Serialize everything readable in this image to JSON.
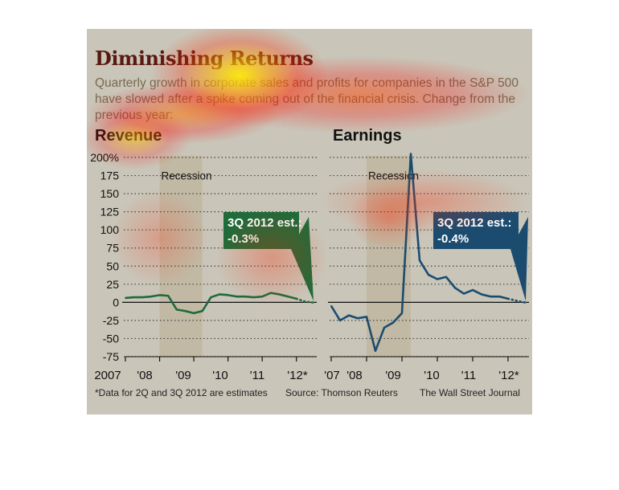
{
  "title": "Diminishing Returns",
  "subtitle": "Quarterly growth in corporate sales and profits for companies in the S&P 500 have slowed after a spike coming out of the financial crisis. Change from the previous year:",
  "footnotes": {
    "left": "*Data for 2Q and 3Q 2012 are estimates",
    "middle": "Source: Thomson Reuters",
    "right": "The Wall Street Journal"
  },
  "colors": {
    "revenue": "#1f6b3a",
    "earnings": "#1b4c70",
    "recession": "#b9ae93",
    "background": "#c9c5b8"
  },
  "chart_data": [
    {
      "type": "line",
      "title": "Revenue",
      "recession_label": "Recession",
      "ylim": [
        -75,
        200
      ],
      "yticks": [
        "200%",
        "175",
        "150",
        "125",
        "100",
        "75",
        "50",
        "25",
        "0",
        "-25",
        "-50",
        "-75"
      ],
      "xticks": [
        "2007",
        "'08",
        "'09",
        "'10",
        "'11",
        "'12*"
      ],
      "recession": [
        "2008-Q1",
        "2009-Q2"
      ],
      "annotation": {
        "line1": "3Q 2012 est.:",
        "line2": "-0.3%"
      },
      "series": [
        {
          "x": [
            "2007-Q1",
            "2007-Q2",
            "2007-Q3",
            "2007-Q4",
            "2008-Q1",
            "2008-Q2",
            "2008-Q3",
            "2008-Q4",
            "2009-Q1",
            "2009-Q2",
            "2009-Q3",
            "2009-Q4",
            "2010-Q1",
            "2010-Q2",
            "2010-Q3",
            "2010-Q4",
            "2011-Q1",
            "2011-Q2",
            "2011-Q3",
            "2011-Q4",
            "2012-Q1",
            "2012-Q2",
            "2012-Q3"
          ],
          "values": [
            6,
            7,
            7,
            8,
            10,
            9,
            -10,
            -12,
            -15,
            -12,
            7,
            11,
            10,
            8,
            8,
            7,
            8,
            13,
            11,
            8,
            5,
            1,
            -0.3
          ],
          "estimated_from": "2012-Q1"
        }
      ]
    },
    {
      "type": "line",
      "title": "Earnings",
      "recession_label": "Recession",
      "ylim": [
        -75,
        200
      ],
      "xticks": [
        "'07",
        "'08",
        "'09",
        "'10",
        "'11",
        "'12*"
      ],
      "recession": [
        "2008-Q1",
        "2009-Q2"
      ],
      "annotation": {
        "line1": "3Q 2012 est.:",
        "line2": "-0.4%"
      },
      "series": [
        {
          "x": [
            "2007-Q1",
            "2007-Q2",
            "2007-Q3",
            "2007-Q4",
            "2008-Q1",
            "2008-Q2",
            "2008-Q3",
            "2008-Q4",
            "2009-Q1",
            "2009-Q2",
            "2009-Q3",
            "2009-Q4",
            "2010-Q1",
            "2010-Q2",
            "2010-Q3",
            "2010-Q4",
            "2011-Q1",
            "2011-Q2",
            "2011-Q3",
            "2011-Q4",
            "2012-Q1",
            "2012-Q2",
            "2012-Q3"
          ],
          "values": [
            -5,
            -25,
            -18,
            -22,
            -20,
            -67,
            -35,
            -28,
            -15,
            205,
            58,
            38,
            32,
            35,
            20,
            12,
            17,
            11,
            8,
            8,
            5,
            2,
            -0.4
          ],
          "estimated_from": "2012-Q1"
        }
      ]
    }
  ]
}
